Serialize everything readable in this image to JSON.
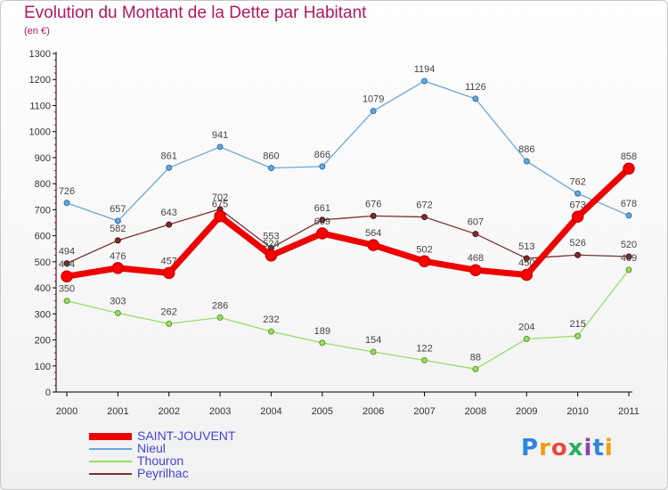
{
  "title": "Evolution du Montant de la Dette par Habitant",
  "subtitle": "(en €)",
  "brand": "Proxiti",
  "chart_data": {
    "type": "line",
    "title": "Evolution du Montant de la Dette par Habitant",
    "ylabel": "(en €)",
    "xlabel": "",
    "ylim": [
      0,
      1300
    ],
    "yticks": [
      0,
      100,
      200,
      300,
      400,
      500,
      600,
      700,
      800,
      900,
      1000,
      1100,
      1200,
      1300
    ],
    "grid": false,
    "legend": "bottom-left",
    "categories": [
      "2000",
      "2001",
      "2002",
      "2003",
      "2004",
      "2005",
      "2006",
      "2007",
      "2008",
      "2009",
      "2010",
      "2011"
    ],
    "series": [
      {
        "name": "Nieul",
        "color": "#6aa6d6",
        "values": [
          726,
          657,
          861,
          941,
          860,
          866,
          1079,
          1194,
          1126,
          886,
          762,
          678
        ]
      },
      {
        "name": "Thouron",
        "color": "#99dd66",
        "values": [
          350,
          303,
          262,
          286,
          232,
          189,
          154,
          122,
          88,
          204,
          215,
          469
        ]
      },
      {
        "name": "Peyrilhac",
        "color": "#7a3030",
        "values": [
          494,
          582,
          643,
          702,
          553,
          661,
          676,
          672,
          607,
          513,
          526,
          520
        ]
      },
      {
        "name": "SAINT-JOUVENT",
        "color": "#ee0000",
        "values": [
          444,
          476,
          457,
          675,
          524,
          609,
          564,
          502,
          468,
          450,
          673,
          858
        ]
      }
    ],
    "legend_order": [
      "SAINT-JOUVENT",
      "Nieul",
      "Thouron",
      "Peyrilhac"
    ]
  }
}
